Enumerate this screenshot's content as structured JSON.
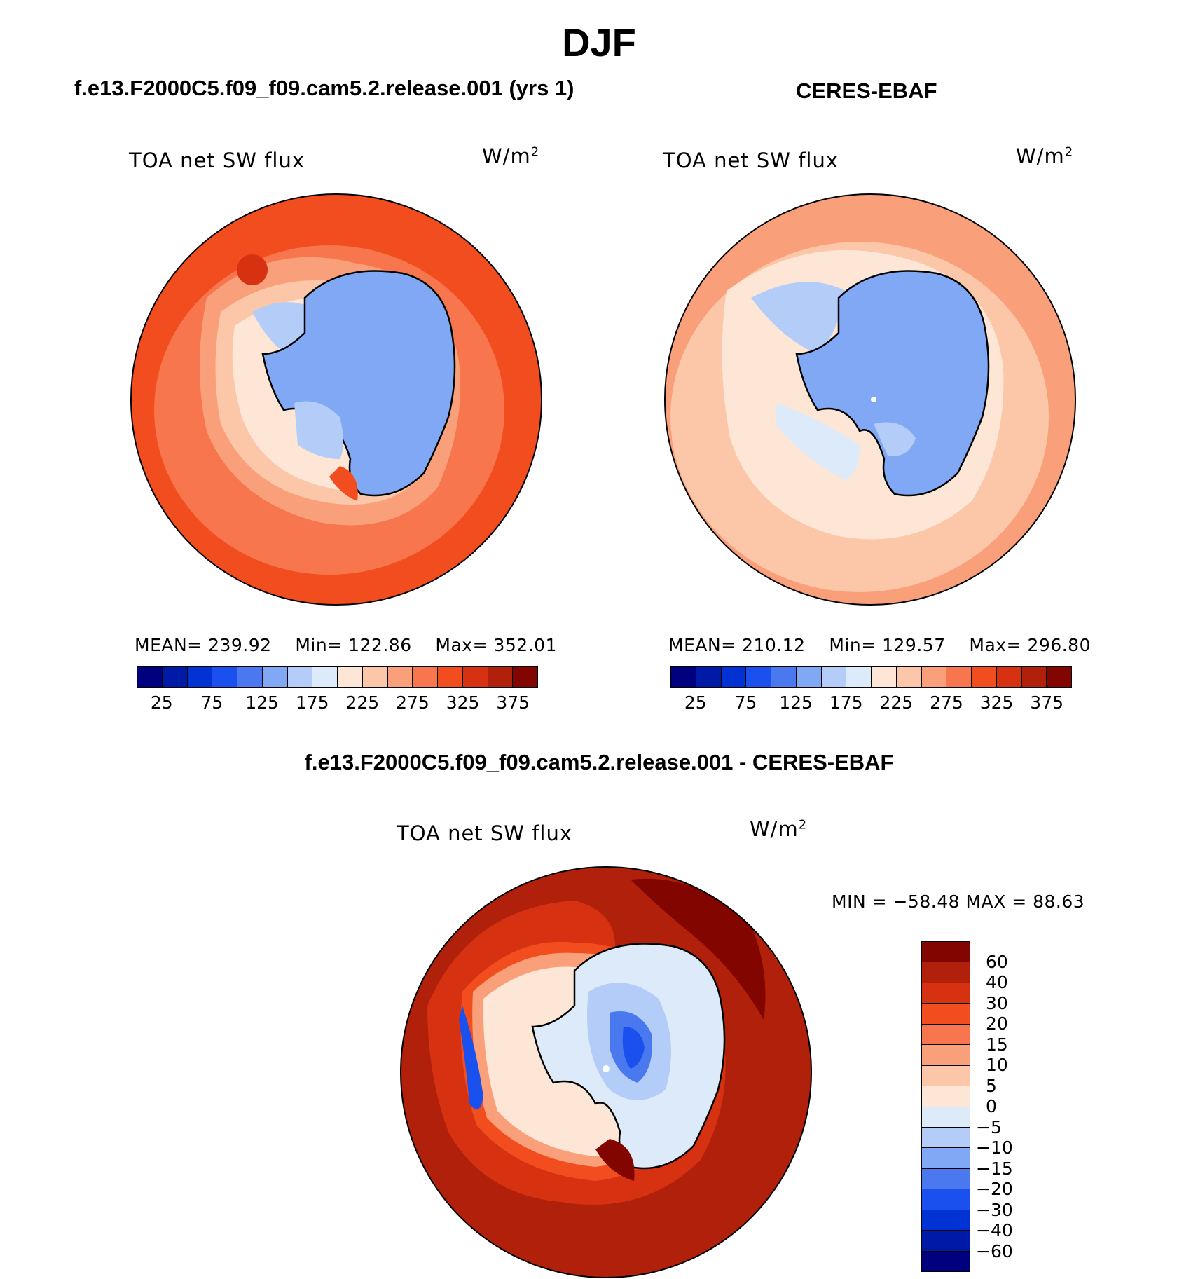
{
  "title": "DJF",
  "panels": {
    "left": {
      "title": "f.e13.F2000C5.f09_f09.cam5.2.release.001 (yrs 1)",
      "variable": "TOA net SW flux",
      "units_base": "W/m",
      "units_exp": "2",
      "mean_label": "MEAN=",
      "mean": "239.92",
      "min_label": "Min=",
      "min": "122.86",
      "max_label": "Max=",
      "max": "352.01"
    },
    "right": {
      "title": "CERES-EBAF",
      "variable": "TOA net SW flux",
      "units_base": "W/m",
      "units_exp": "2",
      "mean_label": "MEAN=",
      "mean": "210.12",
      "min_label": "Min=",
      "min": "129.57",
      "max_label": "Max=",
      "max": "296.80"
    },
    "bottom": {
      "title": "f.e13.F2000C5.f09_f09.cam5.2.release.001 - CERES-EBAF",
      "variable": "TOA net SW flux",
      "units_base": "W/m",
      "units_exp": "2",
      "minmax": "MIN = −58.48 MAX =   88.63"
    }
  },
  "colorbar_top": {
    "colors": [
      "#00007f",
      "#001aa8",
      "#0032d4",
      "#1a50ee",
      "#4a78ee",
      "#80a8f5",
      "#b4cdf8",
      "#dceaf9",
      "#fde6d6",
      "#fbc7a8",
      "#f9a07a",
      "#f7764d",
      "#f24d1f",
      "#d63212",
      "#b0200a",
      "#820500"
    ],
    "tick_labels": [
      "25",
      "75",
      "125",
      "175",
      "225",
      "275",
      "325",
      "375"
    ]
  },
  "colorbar_diff": {
    "colors": [
      "#820500",
      "#b0200a",
      "#d63212",
      "#f24d1f",
      "#f7764d",
      "#f9a07a",
      "#fbc7a8",
      "#fde6d6",
      "#dceaf9",
      "#b4cdf8",
      "#80a8f5",
      "#4a78ee",
      "#1a50ee",
      "#0032d4",
      "#001aa8",
      "#00007f"
    ],
    "tick_labels": [
      "60",
      "40",
      "30",
      "20",
      "15",
      "10",
      "5",
      "0",
      "−5",
      "−10",
      "−15",
      "−20",
      "−30",
      "−40",
      "−60"
    ]
  }
}
